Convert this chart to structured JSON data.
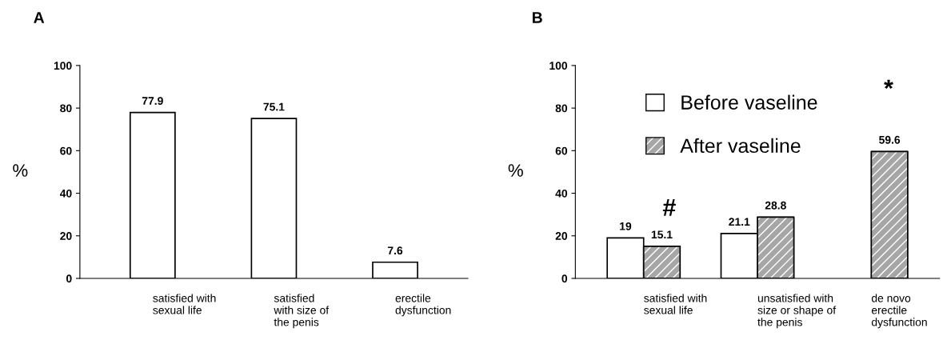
{
  "chart_data": [
    {
      "type": "bar",
      "title": "A",
      "ylabel": "%",
      "categories": [
        "satisfied with\nsexual life",
        "satisfied\nwith size of\nthe penis",
        "erectile\ndysfunction"
      ],
      "series": [
        {
          "color": "#ffffff",
          "values": [
            77.9,
            75.1,
            7.6
          ]
        }
      ],
      "ylim": [
        0,
        100
      ],
      "yticks": [
        0,
        20,
        40,
        60,
        80,
        100
      ],
      "data_labels": true,
      "grid": false,
      "legend": false
    },
    {
      "type": "bar",
      "title": "B",
      "ylabel": "%",
      "categories": [
        "satisfied with\nsexual life",
        "unsatisfied with\nsize or shape of\nthe penis",
        "de novo\nerectile\ndysfunction"
      ],
      "series": [
        {
          "name": "Before vaseline",
          "color": "#ffffff",
          "values": [
            19,
            21.1,
            null
          ]
        },
        {
          "name": "After vaseline",
          "color": "#a6a6a6",
          "values": [
            15.1,
            28.8,
            59.6
          ]
        }
      ],
      "ylim": [
        0,
        100
      ],
      "yticks": [
        0,
        20,
        40,
        60,
        80,
        100
      ],
      "data_labels": true,
      "grid": false,
      "legend": "top",
      "annotations": [
        "#",
        "*"
      ]
    }
  ]
}
